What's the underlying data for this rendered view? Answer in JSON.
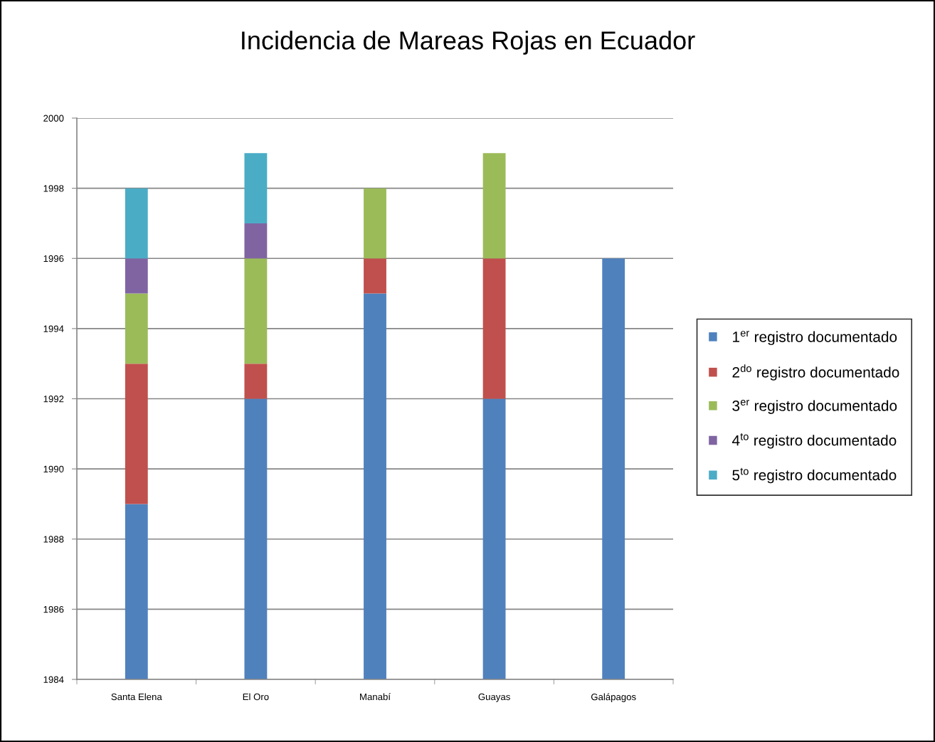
{
  "chart_data": {
    "type": "bar",
    "title": "Incidencia de Mareas Rojas en Ecuador",
    "categories": [
      "Santa Elena",
      "El Oro",
      "Manabí",
      "Guayas",
      "Galápagos"
    ],
    "stacked": true,
    "series": [
      {
        "name": "1$^{er}$ registro documentado",
        "color": "#4f81bd",
        "values": [
          1989,
          1992,
          1995,
          1992,
          1996
        ]
      },
      {
        "name": "2$^{do}$ registro documentado",
        "color": "#c0504d",
        "base": [
          1989,
          1992,
          1995,
          1992,
          null
        ],
        "values": [
          4,
          1,
          1,
          4,
          null
        ]
      },
      {
        "name": "3$^{er}$ registro documentado",
        "color": "#9bbb59",
        "base": [
          1993,
          1993,
          1996,
          1996,
          null
        ],
        "values": [
          2,
          3,
          2,
          3,
          null
        ]
      },
      {
        "name": "4$^{to}$ registro documentado",
        "color": "#8064a2",
        "base": [
          1995,
          1996,
          null,
          null,
          null
        ],
        "values": [
          1,
          1,
          null,
          null,
          null
        ]
      },
      {
        "name": "5$^{to}$ registro documentado",
        "color": "#4bacc6",
        "base": [
          1996,
          1997,
          null,
          null,
          null
        ],
        "values": [
          2,
          2,
          null,
          null,
          null
        ]
      }
    ],
    "ylim": [
      1984,
      2000
    ],
    "yticks": [
      1984,
      1986,
      1988,
      1990,
      1992,
      1994,
      1996,
      1998,
      2000
    ],
    "grid": "y",
    "legend": "right"
  }
}
